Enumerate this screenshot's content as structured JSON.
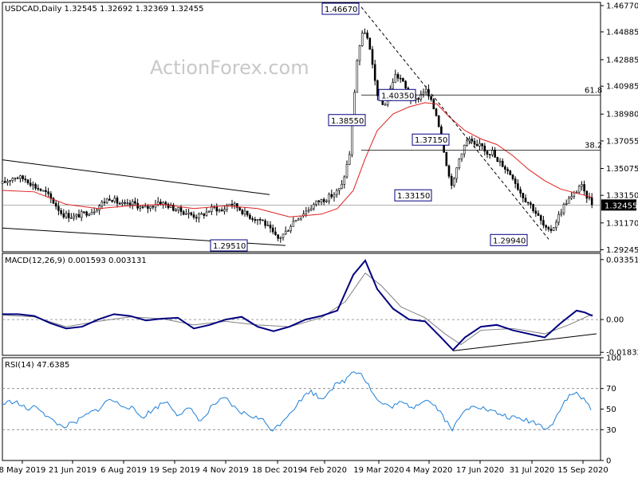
{
  "header": {
    "symbol_line": "USDCAD,Daily  1.32545 1.32692 1.32369 1.32455",
    "watermark": "ActionForex.com"
  },
  "colors": {
    "candle": "#000000",
    "ma": "#e02020",
    "macd": "#000080",
    "signal": "#808080",
    "rsi": "#1e7fd8",
    "trendline": "#000000"
  },
  "chart_data": [
    {
      "type": "candlestick",
      "title": "USDCAD,Daily",
      "ohlc_last": {
        "open": 1.32545,
        "high": 1.32692,
        "low": 1.32369,
        "close": 1.32455
      },
      "current_price_label": "1.32455",
      "ylim": [
        1.291,
        1.47
      ],
      "y_ticks": [
        "1.46770",
        "1.44885",
        "1.42885",
        "1.40985",
        "1.38980",
        "1.37055",
        "1.35075",
        "1.33150",
        "1.31170",
        "1.29245"
      ],
      "x_ticks": [
        "8 May 2019",
        "21 Jun 2019",
        "6 Aug 2019",
        "19 Sep 2019",
        "4 Nov 2019",
        "18 Dec 2019",
        "4 Feb 2020",
        "19 Mar 2020",
        "4 May 2020",
        "17 Jun 2020",
        "31 Jul 2020",
        "15 Sep 2020"
      ],
      "close_path": [
        [
          0,
          1.34
        ],
        [
          15,
          1.345
        ],
        [
          30,
          1.343
        ],
        [
          40,
          1.338
        ],
        [
          55,
          1.333
        ],
        [
          65,
          1.326
        ],
        [
          75,
          1.318
        ],
        [
          90,
          1.316
        ],
        [
          100,
          1.318
        ],
        [
          115,
          1.321
        ],
        [
          125,
          1.326
        ],
        [
          135,
          1.33
        ],
        [
          145,
          1.326
        ],
        [
          155,
          1.324
        ],
        [
          165,
          1.326
        ],
        [
          175,
          1.322
        ],
        [
          185,
          1.323
        ],
        [
          195,
          1.327
        ],
        [
          205,
          1.325
        ],
        [
          215,
          1.322
        ],
        [
          225,
          1.32
        ],
        [
          235,
          1.318
        ],
        [
          245,
          1.316
        ],
        [
          255,
          1.319
        ],
        [
          265,
          1.323
        ],
        [
          275,
          1.32
        ],
        [
          285,
          1.326
        ],
        [
          295,
          1.323
        ],
        [
          305,
          1.318
        ],
        [
          315,
          1.315
        ],
        [
          325,
          1.314
        ],
        [
          335,
          1.307
        ],
        [
          345,
          1.3
        ],
        [
          355,
          1.305
        ],
        [
          365,
          1.313
        ],
        [
          375,
          1.318
        ],
        [
          385,
          1.322
        ],
        [
          395,
          1.327
        ],
        [
          405,
          1.329
        ],
        [
          415,
          1.332
        ],
        [
          425,
          1.337
        ],
        [
          435,
          1.36
        ],
        [
          440,
          1.395
        ],
        [
          445,
          1.43
        ],
        [
          450,
          1.445
        ],
        [
          455,
          1.45
        ],
        [
          460,
          1.438
        ],
        [
          465,
          1.42
        ],
        [
          470,
          1.405
        ],
        [
          478,
          1.395
        ],
        [
          485,
          1.405
        ],
        [
          492,
          1.418
        ],
        [
          500,
          1.415
        ],
        [
          508,
          1.405
        ],
        [
          515,
          1.398
        ],
        [
          522,
          1.402
        ],
        [
          530,
          1.408
        ],
        [
          538,
          1.398
        ],
        [
          545,
          1.388
        ],
        [
          550,
          1.375
        ],
        [
          555,
          1.36
        ],
        [
          560,
          1.345
        ],
        [
          565,
          1.338
        ],
        [
          570,
          1.352
        ],
        [
          575,
          1.362
        ],
        [
          580,
          1.368
        ],
        [
          585,
          1.372
        ],
        [
          590,
          1.368
        ],
        [
          595,
          1.365
        ],
        [
          600,
          1.37
        ],
        [
          605,
          1.364
        ],
        [
          610,
          1.362
        ],
        [
          615,
          1.363
        ],
        [
          620,
          1.355
        ],
        [
          625,
          1.355
        ],
        [
          632,
          1.35
        ],
        [
          640,
          1.345
        ],
        [
          648,
          1.335
        ],
        [
          655,
          1.329
        ],
        [
          662,
          1.325
        ],
        [
          670,
          1.318
        ],
        [
          678,
          1.31
        ],
        [
          684,
          1.305
        ],
        [
          690,
          1.308
        ],
        [
          696,
          1.315
        ],
        [
          702,
          1.322
        ],
        [
          708,
          1.328
        ],
        [
          714,
          1.33
        ],
        [
          720,
          1.335
        ],
        [
          725,
          1.34
        ],
        [
          730,
          1.332
        ],
        [
          735,
          1.33
        ],
        [
          740,
          1.325
        ]
      ],
      "ma_path": [
        [
          0,
          1.335
        ],
        [
          40,
          1.334
        ],
        [
          80,
          1.325
        ],
        [
          120,
          1.322
        ],
        [
          160,
          1.324
        ],
        [
          200,
          1.325
        ],
        [
          240,
          1.322
        ],
        [
          280,
          1.324
        ],
        [
          320,
          1.322
        ],
        [
          360,
          1.316
        ],
        [
          400,
          1.318
        ],
        [
          420,
          1.322
        ],
        [
          440,
          1.335
        ],
        [
          455,
          1.358
        ],
        [
          470,
          1.378
        ],
        [
          490,
          1.39
        ],
        [
          510,
          1.395
        ],
        [
          530,
          1.398
        ],
        [
          545,
          1.397
        ],
        [
          560,
          1.388
        ],
        [
          580,
          1.378
        ],
        [
          600,
          1.372
        ],
        [
          620,
          1.368
        ],
        [
          640,
          1.36
        ],
        [
          660,
          1.35
        ],
        [
          680,
          1.342
        ],
        [
          700,
          1.336
        ],
        [
          720,
          1.333
        ],
        [
          740,
          1.33
        ]
      ],
      "annotations": [
        {
          "text": "1.46670",
          "x": 447,
          "y": 1.4667
        },
        {
          "text": "1.38550",
          "x": 455,
          "y": 1.3855
        },
        {
          "text": "1.40350",
          "x": 518,
          "y": 1.4035
        },
        {
          "text": "1.37150",
          "x": 560,
          "y": 1.3715
        },
        {
          "text": "1.33150",
          "x": 538,
          "y": 1.3315
        },
        {
          "text": "1.29940",
          "x": 658,
          "y": 1.2994
        },
        {
          "text": "1.29510",
          "x": 307,
          "y": 1.2951
        }
      ],
      "fib_levels": [
        {
          "label": "61.8",
          "value": 1.4035
        },
        {
          "label": "38.2",
          "value": 1.364
        }
      ],
      "trendlines": [
        [
          [
            0,
            1.357
          ],
          [
            335,
            1.332
          ]
        ],
        [
          [
            0,
            1.308
          ],
          [
            355,
            1.2955
          ]
        ],
        [
          [
            450,
            1.4667
          ],
          [
            685,
            1.3
          ]
        ]
      ]
    },
    {
      "type": "line",
      "title": "MACD(12,26,9) 0.001593 0.003131",
      "ylim": [
        -0.02,
        0.037
      ],
      "y_ticks": [
        "0.033515",
        "0.00",
        "-0.018324"
      ],
      "macd_path": [
        [
          0,
          0.003
        ],
        [
          20,
          0.003
        ],
        [
          40,
          0.002
        ],
        [
          60,
          -0.002
        ],
        [
          80,
          -0.005
        ],
        [
          100,
          -0.004
        ],
        [
          120,
          0.0
        ],
        [
          140,
          0.003
        ],
        [
          160,
          0.002
        ],
        [
          180,
          -0.0005
        ],
        [
          200,
          0.0005
        ],
        [
          220,
          0.001
        ],
        [
          240,
          -0.005
        ],
        [
          260,
          -0.003
        ],
        [
          280,
          0.0
        ],
        [
          300,
          0.0015
        ],
        [
          320,
          -0.004
        ],
        [
          340,
          -0.0065
        ],
        [
          360,
          -0.004
        ],
        [
          380,
          0.0
        ],
        [
          400,
          0.002
        ],
        [
          420,
          0.005
        ],
        [
          440,
          0.025
        ],
        [
          455,
          0.033
        ],
        [
          470,
          0.017
        ],
        [
          490,
          0.006
        ],
        [
          510,
          0.0
        ],
        [
          530,
          -0.001
        ],
        [
          550,
          -0.01
        ],
        [
          565,
          -0.017
        ],
        [
          580,
          -0.01
        ],
        [
          600,
          -0.004
        ],
        [
          620,
          -0.003
        ],
        [
          640,
          -0.006
        ],
        [
          660,
          -0.008
        ],
        [
          680,
          -0.01
        ],
        [
          700,
          -0.002
        ],
        [
          720,
          0.005
        ],
        [
          730,
          0.004
        ],
        [
          740,
          0.002
        ]
      ],
      "signal_path": [
        [
          0,
          0.0025
        ],
        [
          40,
          0.0015
        ],
        [
          80,
          -0.004
        ],
        [
          120,
          -0.001
        ],
        [
          160,
          0.0015
        ],
        [
          200,
          0.0005
        ],
        [
          240,
          -0.003
        ],
        [
          280,
          -0.001
        ],
        [
          320,
          -0.003
        ],
        [
          360,
          -0.004
        ],
        [
          400,
          0.001
        ],
        [
          430,
          0.01
        ],
        [
          455,
          0.026
        ],
        [
          475,
          0.019
        ],
        [
          500,
          0.007
        ],
        [
          530,
          0.001
        ],
        [
          555,
          -0.008
        ],
        [
          575,
          -0.014
        ],
        [
          600,
          -0.006
        ],
        [
          640,
          -0.005
        ],
        [
          680,
          -0.008
        ],
        [
          710,
          -0.003
        ],
        [
          740,
          0.003
        ]
      ],
      "trendline": [
        [
          565,
          -0.0175
        ],
        [
          745,
          -0.008
        ]
      ]
    },
    {
      "type": "line",
      "title": "RSI(14) 47.6385",
      "ylim": [
        0,
        100
      ],
      "y_ticks": [
        "100",
        "70",
        "50",
        "30",
        "0"
      ],
      "levels": [
        70,
        30
      ],
      "rsi_path": [
        [
          0,
          55
        ],
        [
          15,
          58
        ],
        [
          30,
          50
        ],
        [
          45,
          52
        ],
        [
          60,
          40
        ],
        [
          75,
          33
        ],
        [
          90,
          36
        ],
        [
          105,
          44
        ],
        [
          120,
          50
        ],
        [
          135,
          60
        ],
        [
          145,
          55
        ],
        [
          160,
          52
        ],
        [
          175,
          42
        ],
        [
          190,
          50
        ],
        [
          205,
          58
        ],
        [
          220,
          45
        ],
        [
          235,
          50
        ],
        [
          250,
          38
        ],
        [
          265,
          55
        ],
        [
          280,
          60
        ],
        [
          295,
          48
        ],
        [
          310,
          44
        ],
        [
          325,
          40
        ],
        [
          340,
          29
        ],
        [
          355,
          42
        ],
        [
          370,
          55
        ],
        [
          385,
          68
        ],
        [
          400,
          60
        ],
        [
          415,
          72
        ],
        [
          430,
          78
        ],
        [
          440,
          88
        ],
        [
          450,
          85
        ],
        [
          460,
          72
        ],
        [
          470,
          58
        ],
        [
          485,
          52
        ],
        [
          500,
          56
        ],
        [
          515,
          52
        ],
        [
          530,
          60
        ],
        [
          545,
          52
        ],
        [
          555,
          40
        ],
        [
          565,
          30
        ],
        [
          575,
          44
        ],
        [
          590,
          55
        ],
        [
          605,
          50
        ],
        [
          620,
          46
        ],
        [
          635,
          42
        ],
        [
          650,
          40
        ],
        [
          665,
          38
        ],
        [
          680,
          32
        ],
        [
          690,
          35
        ],
        [
          700,
          52
        ],
        [
          710,
          62
        ],
        [
          720,
          66
        ],
        [
          730,
          58
        ],
        [
          740,
          48
        ]
      ]
    }
  ]
}
